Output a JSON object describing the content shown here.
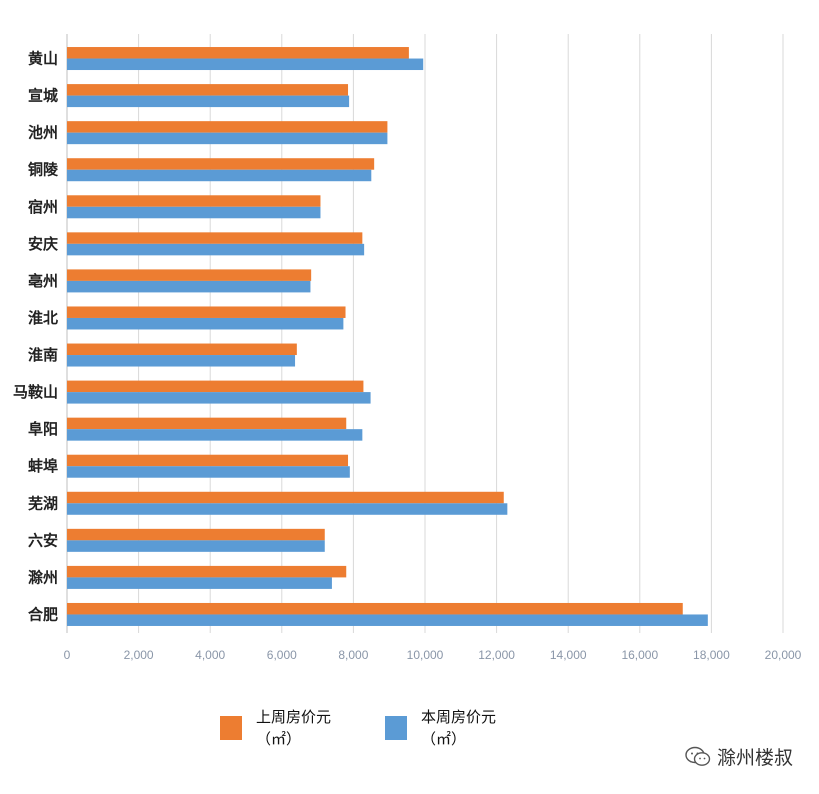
{
  "chart_data": {
    "type": "bar",
    "orientation": "horizontal",
    "categories": [
      "黄山",
      "宣城",
      "池州",
      "铜陵",
      "宿州",
      "安庆",
      "亳州",
      "淮北",
      "淮南",
      "马鞍山",
      "阜阳",
      "蚌埠",
      "芜湖",
      "六安",
      "滁州",
      "合肥"
    ],
    "series": [
      {
        "name": "上周房价元（㎡）",
        "color": "#ed7d31",
        "values": [
          9550,
          7850,
          8950,
          8580,
          7080,
          8250,
          6820,
          7780,
          6420,
          8280,
          7800,
          7850,
          12200,
          7200,
          7800,
          17200
        ]
      },
      {
        "name": "本周房价元（㎡）",
        "color": "#5b9bd5",
        "values": [
          9950,
          7880,
          8950,
          8500,
          7080,
          8300,
          6800,
          7720,
          6370,
          8480,
          8250,
          7900,
          12300,
          7200,
          7400,
          17900
        ]
      }
    ],
    "xlim": [
      0,
      20000
    ],
    "ticks": [
      0,
      2000,
      4000,
      6000,
      8000,
      10000,
      12000,
      14000,
      16000,
      18000,
      20000
    ],
    "tick_labels": [
      "0",
      "2,000",
      "4,000",
      "6,000",
      "8,000",
      "10,000",
      "12,000",
      "14,000",
      "16,000",
      "18,000",
      "20,000"
    ],
    "grid": true,
    "legend_position": "bottom"
  },
  "legend": {
    "prev_label": "上周房价元（㎡）",
    "curr_label": "本周房价元（㎡）"
  },
  "watermark": {
    "text": "滁州楼叔",
    "icon": "wechat-icon"
  }
}
